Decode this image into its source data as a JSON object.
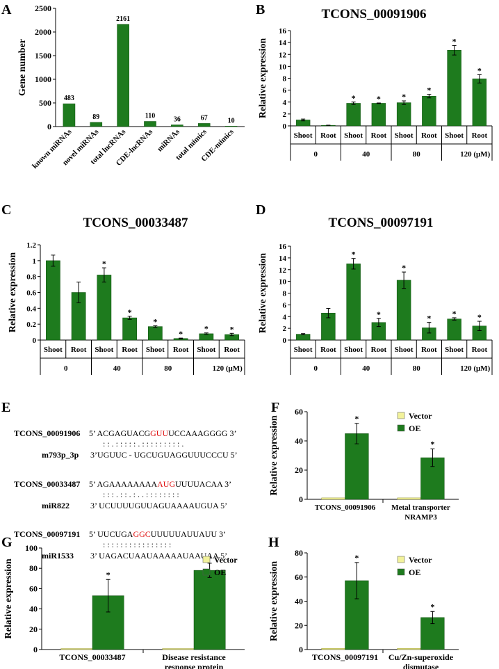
{
  "colors": {
    "bar": "#1e7b1e",
    "bar_stroke": "#0f4f0f",
    "vector": "#f2f29a",
    "highlight": "#e01010"
  },
  "chart_data": [
    {
      "id": "A",
      "type": "bar",
      "panel_label": "A",
      "title": "",
      "ylabel": "Gene number",
      "ylim": [
        0,
        2500
      ],
      "yticks": [
        0,
        500,
        1000,
        1500,
        2000,
        2500
      ],
      "categories": [
        "known miRNAs",
        "novel miRNAs",
        "total lncRNAs",
        "CDE-lncRNAs",
        "miRNAs",
        "total mimics",
        "CDE-mimics"
      ],
      "values": [
        483,
        89,
        2161,
        110,
        36,
        67,
        10
      ],
      "data_labels": [
        "483",
        "89",
        "2161",
        "110",
        "36",
        "67",
        "10"
      ]
    },
    {
      "id": "B",
      "type": "bar",
      "panel_label": "B",
      "title": "TCONS_00091906",
      "ylabel": "Relative expression",
      "ylim": [
        0,
        16
      ],
      "yticks": [
        0,
        2,
        4,
        6,
        8,
        10,
        12,
        14,
        16
      ],
      "categories": [
        "Shoot",
        "Root",
        "Shoot",
        "Root",
        "Shoot",
        "Root",
        "Shoot",
        "Root"
      ],
      "groups": [
        "0",
        "40",
        "80",
        "120 (μM)"
      ],
      "values": [
        1.0,
        0.1,
        3.8,
        3.8,
        3.9,
        5.0,
        12.7,
        7.9
      ],
      "errors": [
        0.15,
        0.02,
        0.2,
        0.05,
        0.3,
        0.3,
        0.8,
        0.7
      ],
      "significant": [
        false,
        false,
        true,
        true,
        true,
        true,
        true,
        true
      ]
    },
    {
      "id": "C",
      "type": "bar",
      "panel_label": "C",
      "title": "TCONS_00033487",
      "ylabel": "Relative expression",
      "ylim": [
        0,
        1.2
      ],
      "yticks": [
        0,
        0.2,
        0.4,
        0.6,
        0.8,
        1,
        1.2
      ],
      "ytick_labels": [
        "0",
        "0.2",
        "0.4",
        "0.6",
        "0.8",
        "1",
        "1.2"
      ],
      "categories": [
        "Shoot",
        "Root",
        "Shoot",
        "Root",
        "Shoot",
        "Root",
        "Shoot",
        "Root"
      ],
      "groups": [
        "0",
        "40",
        "80",
        "120 (μM)"
      ],
      "values": [
        1.0,
        0.6,
        0.82,
        0.28,
        0.17,
        0.02,
        0.08,
        0.07
      ],
      "errors": [
        0.07,
        0.13,
        0.09,
        0.02,
        0.01,
        0.005,
        0.01,
        0.015
      ],
      "significant": [
        false,
        false,
        true,
        true,
        true,
        true,
        true,
        true
      ]
    },
    {
      "id": "D",
      "type": "bar",
      "panel_label": "D",
      "title": "TCONS_00097191",
      "ylabel": "Relative expression",
      "ylim": [
        0,
        16
      ],
      "yticks": [
        0,
        2,
        4,
        6,
        8,
        10,
        12,
        14,
        16
      ],
      "categories": [
        "Shoot",
        "Root",
        "Shoot",
        "Root",
        "Shoot",
        "Root",
        "Shoot",
        "Root"
      ],
      "groups": [
        "0",
        "40",
        "80",
        "120 (μM)"
      ],
      "values": [
        1.0,
        4.6,
        13.0,
        3.0,
        10.2,
        2.1,
        3.6,
        2.4
      ],
      "errors": [
        0.1,
        0.8,
        0.9,
        0.7,
        1.4,
        0.9,
        0.2,
        0.8
      ],
      "significant": [
        false,
        false,
        true,
        true,
        true,
        true,
        true,
        true
      ]
    },
    {
      "id": "F",
      "type": "bar",
      "panel_label": "F",
      "title": "",
      "ylabel": "Relative expression",
      "ylim": [
        0,
        60
      ],
      "yticks": [
        0,
        20,
        40,
        60
      ],
      "categories": [
        "TCONS_00091906",
        "Metal transporter NRAMP3"
      ],
      "category_lines": [
        [
          "TCONS_00091906"
        ],
        [
          "Metal transporter",
          "NRAMP3"
        ]
      ],
      "series": [
        {
          "name": "Vector",
          "values": [
            1,
            1
          ],
          "errors": [
            0,
            0
          ]
        },
        {
          "name": "OE",
          "values": [
            45,
            28.5
          ],
          "errors": [
            7,
            6
          ]
        }
      ]
    },
    {
      "id": "G",
      "type": "bar",
      "panel_label": "G",
      "title": "",
      "ylabel": "Relative expression",
      "ylim": [
        0,
        100
      ],
      "yticks": [
        0,
        20,
        40,
        60,
        80,
        100
      ],
      "categories": [
        "TCONS_00033487",
        "Disease resistance response protein"
      ],
      "category_lines": [
        [
          "TCONS_00033487"
        ],
        [
          "Disease resistance",
          "response protein"
        ]
      ],
      "series": [
        {
          "name": "Vector",
          "values": [
            1,
            1
          ],
          "errors": [
            0,
            0
          ]
        },
        {
          "name": "OE",
          "values": [
            53,
            78
          ],
          "errors": [
            16,
            7
          ]
        }
      ]
    },
    {
      "id": "H",
      "type": "bar",
      "panel_label": "H",
      "title": "",
      "ylabel": "Relative expression",
      "ylim": [
        0,
        80
      ],
      "yticks": [
        0,
        20,
        40,
        60,
        80
      ],
      "categories": [
        "TCONS_00097191",
        "Cu/Zn-superoxide dismutase"
      ],
      "category_lines": [
        [
          "TCONS_00097191"
        ],
        [
          "Cu/Zn-superoxide",
          "dismutase"
        ]
      ],
      "series": [
        {
          "name": "Vector",
          "values": [
            1,
            1
          ],
          "errors": [
            0,
            0
          ]
        },
        {
          "name": "OE",
          "values": [
            57,
            26.5
          ],
          "errors": [
            15,
            5
          ]
        }
      ]
    }
  ],
  "alignments": {
    "panel_label": "E",
    "pairs": [
      {
        "lnc_name": "TCONS_00091906",
        "lnc_seq": [
          "5’ ACGAGUACG",
          "GUU",
          "UCCAAAGGGG 3’"
        ],
        "match": ": : . : :     : : : .   : : : : : : : : : .",
        "mir_name": "m793p_3p",
        "mir_seq": "3’UGUUC - UGCUGUAGGUUUCCCU  5’"
      },
      {
        "lnc_name": "TCONS_00033487",
        "lnc_seq": [
          "5’ AGAAAAAAAA",
          "AUG",
          "UUUUACAA  3’"
        ],
        "match": ": : : . : :     . :     . . : : : : : : : :",
        "mir_name": "miR822",
        "mir_seq": "3’ UCUUUUGUUAGUAAAAUGUA 5’"
      },
      {
        "lnc_name": "TCONS_00097191",
        "lnc_seq": [
          "5’ UUCUGA",
          "GGC",
          "UUUUUAUUAUU 3’"
        ],
        "match": ": : : : :     : : : : : : : : : : :",
        "mir_name": "miR1533",
        "mir_seq": "3’ UAGACUAAUAAAAAUAAUAA 5’"
      }
    ]
  }
}
